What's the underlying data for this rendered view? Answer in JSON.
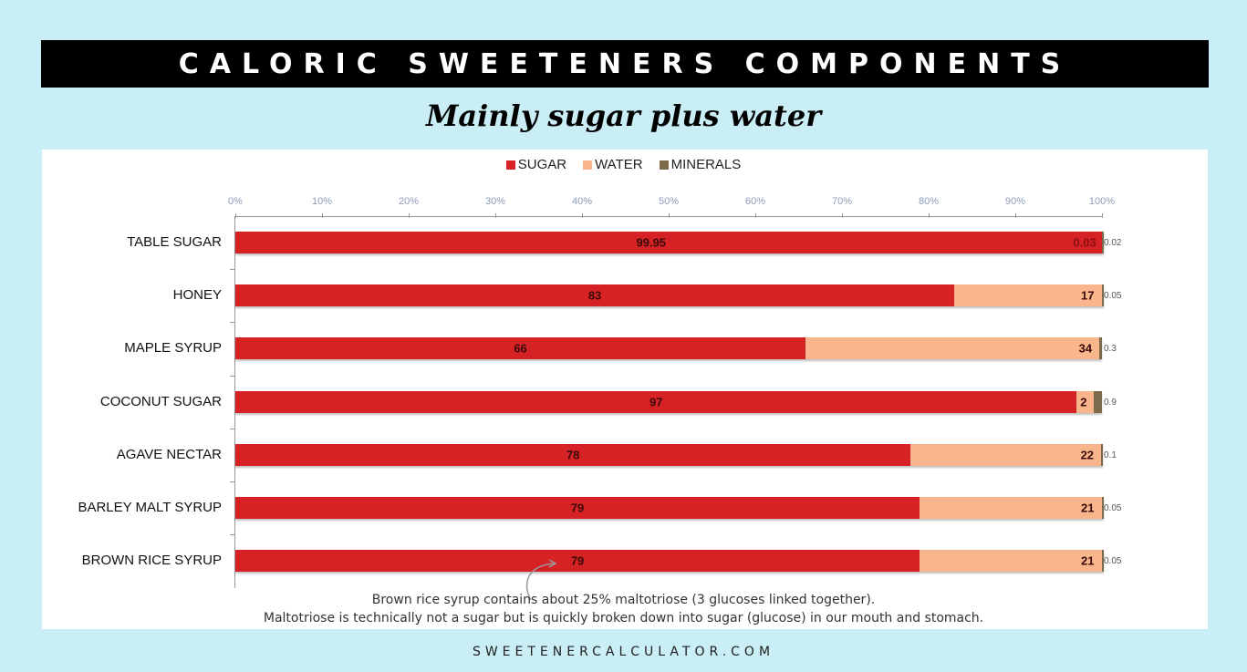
{
  "header": {
    "title": "CALORIC SWEETENERS COMPONENTS",
    "subtitle": "Mainly sugar plus water"
  },
  "legend": [
    {
      "label": "SUGAR",
      "color": "#d62224"
    },
    {
      "label": "WATER",
      "color": "#f9b68d"
    },
    {
      "label": "MINERALS",
      "color": "#7b6a4b"
    }
  ],
  "note": {
    "line1": "Brown rice syrup contains about 25% maltotriose (3 glucoses linked together).",
    "line2": "Maltotriose is technically not a sugar but is quickly broken down into sugar (glucose) in our mouth and stomach."
  },
  "footer": "SWEETENERCALCULATOR.COM",
  "chart_data": {
    "type": "bar",
    "orientation": "horizontal",
    "stacked": true,
    "percent_stacked": true,
    "title": "CALORIC SWEETENERS COMPONENTS",
    "subtitle": "Mainly sugar plus water",
    "xlabel": "",
    "ylabel": "",
    "xlim": [
      0,
      100
    ],
    "x_ticks": [
      "0%",
      "10%",
      "20%",
      "30%",
      "40%",
      "50%",
      "60%",
      "70%",
      "80%",
      "90%",
      "100%"
    ],
    "legend_position": "top",
    "grid": false,
    "categories": [
      "TABLE SUGAR",
      "HONEY",
      "MAPLE SYRUP",
      "COCONUT SUGAR",
      "AGAVE NECTAR",
      "BARLEY MALT SYRUP",
      "BROWN RICE SYRUP"
    ],
    "series": [
      {
        "name": "SUGAR",
        "color": "#d62224",
        "values": [
          99.95,
          83,
          66,
          97,
          78,
          79,
          79
        ],
        "labels": [
          "99.95",
          "83",
          "66",
          "97",
          "78",
          "79",
          "79"
        ]
      },
      {
        "name": "WATER",
        "color": "#f9b68d",
        "values": [
          0.03,
          17,
          34,
          2,
          22,
          21,
          21
        ],
        "labels": [
          "0.03",
          "17",
          "34",
          "2",
          "22",
          "21",
          "21"
        ]
      },
      {
        "name": "MINERALS",
        "color": "#7b6a4b",
        "values": [
          0.02,
          0.05,
          0.3,
          0.9,
          0.1,
          0.05,
          0.05
        ],
        "labels": [
          "0.02",
          "0.05",
          "0.3",
          "0.9",
          "0.1",
          "0.05",
          "0.05"
        ]
      }
    ],
    "annotations": [
      "Brown rice syrup contains about 25% maltotriose (3 glucoses linked together).",
      "Maltotriose is technically not a sugar but is quickly broken down into sugar (glucose) in our mouth and stomach."
    ]
  }
}
